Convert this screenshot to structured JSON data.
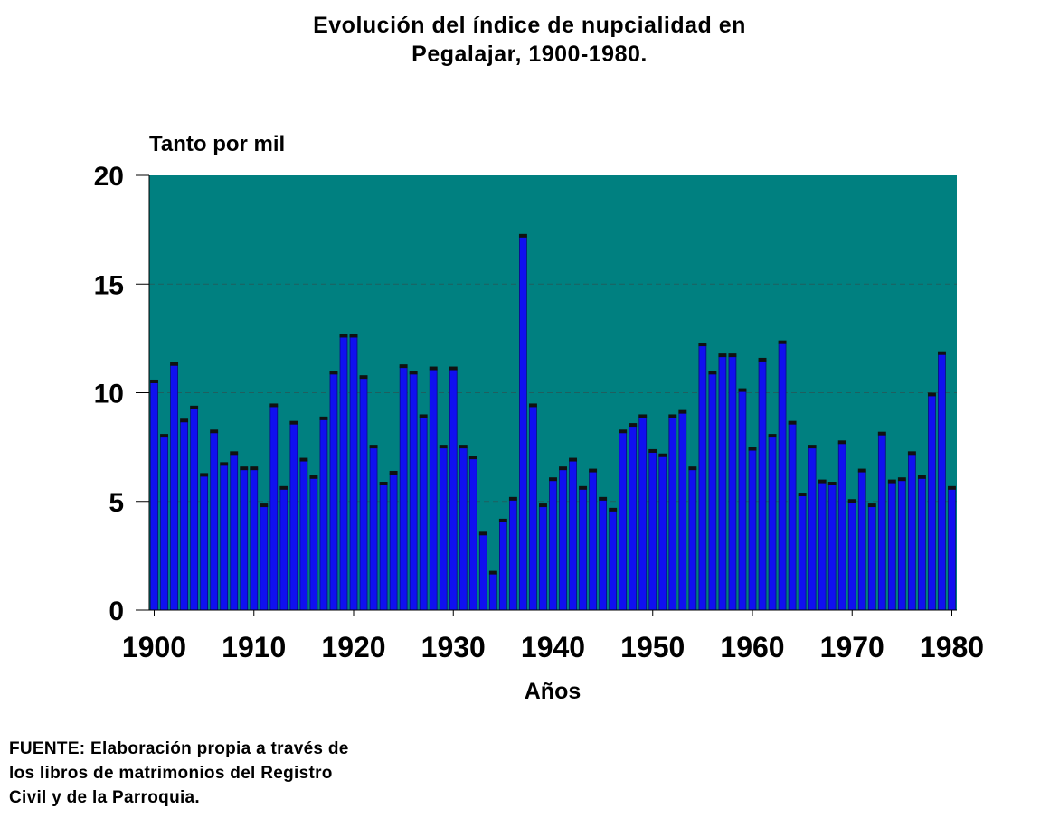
{
  "chart_data": {
    "type": "bar",
    "title_lines": [
      "Evolución del índice de nupcialidad en",
      "Pegalajar, 1900-1980."
    ],
    "ylabel": "Tanto por mil",
    "xlabel": "Años",
    "ylim": [
      0,
      20
    ],
    "y_ticks": [
      "0",
      "5",
      "10",
      "15",
      "20"
    ],
    "x_ticks": [
      "1900",
      "1910",
      "1920",
      "1930",
      "1940",
      "1950",
      "1960",
      "1970",
      "1980"
    ],
    "x_start": 1900,
    "x_end": 1980,
    "grid": "horizontal",
    "colors": {
      "plot_background": "#008080",
      "bar": "#1010f0",
      "bar_edge": "#0a0a80",
      "cap": "#111111"
    },
    "series": [
      {
        "x": [
          1900,
          1901,
          1902,
          1903,
          1904,
          1905,
          1906,
          1907,
          1908,
          1909,
          1910,
          1911,
          1912,
          1913,
          1914,
          1915,
          1916,
          1917,
          1918,
          1919,
          1920,
          1921,
          1922,
          1923,
          1924,
          1925,
          1926,
          1927,
          1928,
          1929,
          1930,
          1931,
          1932,
          1933,
          1934,
          1935,
          1936,
          1937,
          1938,
          1939,
          1940,
          1941,
          1942,
          1943,
          1944,
          1945,
          1946,
          1947,
          1948,
          1949,
          1950,
          1951,
          1952,
          1953,
          1954,
          1955,
          1956,
          1957,
          1958,
          1959,
          1960,
          1961,
          1962,
          1963,
          1964,
          1965,
          1966,
          1967,
          1968,
          1969,
          1970,
          1971,
          1972,
          1973,
          1974,
          1975,
          1976,
          1977,
          1978,
          1979,
          1980
        ],
        "values": [
          10.5,
          8.0,
          11.3,
          8.7,
          9.3,
          6.2,
          8.2,
          6.7,
          7.2,
          6.5,
          6.5,
          4.8,
          9.4,
          5.6,
          8.6,
          6.9,
          6.1,
          8.8,
          10.9,
          12.6,
          12.6,
          10.7,
          7.5,
          5.8,
          6.3,
          11.2,
          10.9,
          8.9,
          11.1,
          7.5,
          11.1,
          7.5,
          7.0,
          3.5,
          1.7,
          4.1,
          5.1,
          17.2,
          9.4,
          4.8,
          6.0,
          6.5,
          6.9,
          5.6,
          6.4,
          5.1,
          4.6,
          8.2,
          8.5,
          8.9,
          7.3,
          7.1,
          8.9,
          9.1,
          6.5,
          12.2,
          10.9,
          11.7,
          11.7,
          10.1,
          7.4,
          11.5,
          8.0,
          12.3,
          8.6,
          5.3,
          7.5,
          5.9,
          5.8,
          7.7,
          5.0,
          6.4,
          4.8,
          8.1,
          5.9,
          6.0,
          7.2,
          6.1,
          9.9,
          11.8,
          5.6
        ]
      }
    ]
  },
  "source_note": [
    "FUENTE: Elaboración propia a través de",
    "los libros de matrimonios del Registro",
    "Civil y de la Parroquia."
  ]
}
